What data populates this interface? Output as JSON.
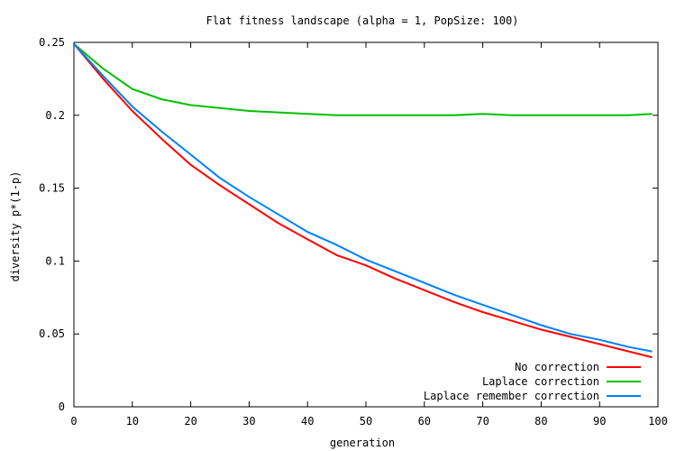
{
  "chart_data": {
    "type": "line",
    "title": "Flat fitness landscape (alpha = 1, PopSize: 100)",
    "xlabel": "generation",
    "ylabel": "diversity p*(1-p)",
    "xlim": [
      0,
      100
    ],
    "ylim": [
      0,
      0.25
    ],
    "xticks": [
      "0",
      "10",
      "20",
      "30",
      "40",
      "50",
      "60",
      "70",
      "80",
      "90",
      "100"
    ],
    "yticks": [
      "0",
      "0.05",
      "0.1",
      "0.15",
      "0.2",
      "0.25"
    ],
    "grid": false,
    "legend_position": "bottom-right",
    "series": [
      {
        "name": "No correction",
        "color": "#ff0000",
        "x": [
          0,
          5,
          10,
          15,
          20,
          25,
          30,
          35,
          40,
          45,
          50,
          55,
          60,
          65,
          70,
          75,
          80,
          85,
          90,
          95,
          99
        ],
        "values": [
          0.249,
          0.225,
          0.203,
          0.184,
          0.166,
          0.152,
          0.139,
          0.126,
          0.115,
          0.104,
          0.097,
          0.088,
          0.08,
          0.072,
          0.065,
          0.059,
          0.053,
          0.048,
          0.043,
          0.038,
          0.034
        ]
      },
      {
        "name": "Laplace correction",
        "color": "#00c000",
        "x": [
          0,
          5,
          10,
          15,
          20,
          25,
          30,
          35,
          40,
          45,
          50,
          55,
          60,
          65,
          70,
          75,
          80,
          85,
          90,
          95,
          99
        ],
        "values": [
          0.249,
          0.232,
          0.218,
          0.211,
          0.207,
          0.205,
          0.203,
          0.202,
          0.201,
          0.2,
          0.2,
          0.2,
          0.2,
          0.2,
          0.201,
          0.2,
          0.2,
          0.2,
          0.2,
          0.2,
          0.201
        ]
      },
      {
        "name": "Laplace remember correction",
        "color": "#0080ff",
        "x": [
          0,
          5,
          10,
          15,
          20,
          25,
          30,
          35,
          40,
          45,
          50,
          55,
          60,
          65,
          70,
          75,
          80,
          85,
          90,
          95,
          99
        ],
        "values": [
          0.249,
          0.227,
          0.206,
          0.189,
          0.173,
          0.157,
          0.144,
          0.132,
          0.12,
          0.111,
          0.101,
          0.093,
          0.085,
          0.077,
          0.07,
          0.063,
          0.056,
          0.05,
          0.046,
          0.041,
          0.038
        ]
      }
    ]
  }
}
